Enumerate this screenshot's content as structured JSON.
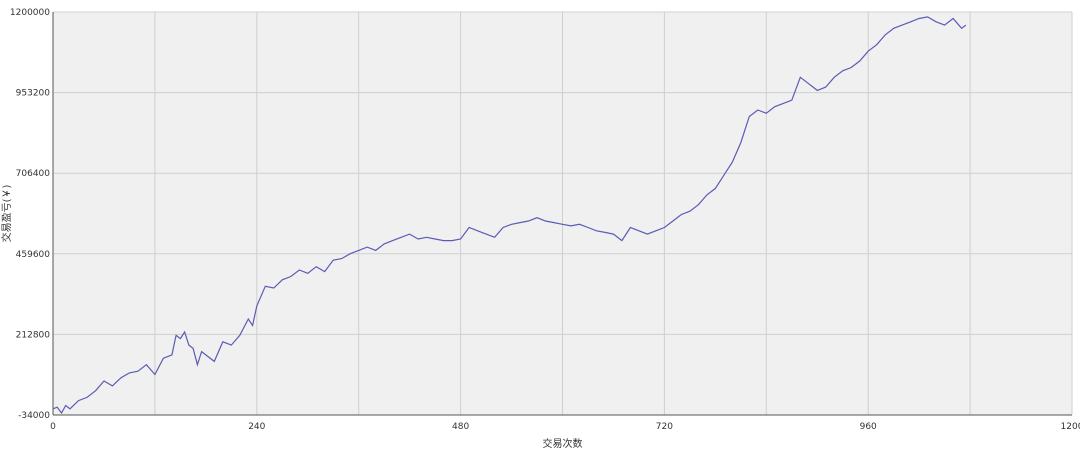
{
  "chart_data": {
    "type": "line",
    "title": "",
    "xlabel": "交易次数",
    "ylabel": "交易盈亏(￥)",
    "xlim": [
      0,
      1200
    ],
    "ylim": [
      -34000,
      1200000
    ],
    "x_ticks": [
      0,
      240,
      480,
      720,
      960,
      1200
    ],
    "y_ticks": [
      -34000,
      212800,
      459600,
      706400,
      953200,
      1200000
    ],
    "x_tick_labels": [
      "0",
      "240",
      "480",
      "720",
      "960",
      "1200"
    ],
    "y_tick_labels": [
      "-34000",
      "212800",
      "459600",
      "706400",
      "953200",
      "1200000"
    ],
    "grid": true,
    "legend": "none",
    "colors": {
      "line": "#5b5bb5",
      "plot_bg": "#f0f0f0",
      "grid": "#cfcfcf"
    },
    "series": [
      {
        "x": [
          0,
          5,
          10,
          15,
          20,
          30,
          40,
          50,
          60,
          70,
          80,
          90,
          100,
          110,
          120,
          130,
          140,
          145,
          150,
          155,
          160,
          165,
          170,
          175,
          180,
          190,
          200,
          210,
          220,
          230,
          235,
          240,
          250,
          260,
          270,
          280,
          290,
          300,
          310,
          320,
          330,
          340,
          350,
          360,
          370,
          380,
          390,
          400,
          410,
          420,
          430,
          440,
          450,
          460,
          470,
          480,
          490,
          500,
          510,
          520,
          530,
          540,
          550,
          560,
          570,
          580,
          590,
          600,
          610,
          620,
          630,
          640,
          650,
          660,
          670,
          680,
          690,
          700,
          710,
          720,
          730,
          740,
          750,
          760,
          770,
          780,
          790,
          800,
          810,
          820,
          830,
          840,
          850,
          860,
          870,
          880,
          890,
          900,
          910,
          920,
          930,
          940,
          950,
          960,
          970,
          980,
          990,
          1000,
          1010,
          1020,
          1030,
          1040,
          1050,
          1060,
          1070,
          1075
        ],
        "y": [
          -15000,
          -10000,
          -28000,
          -5000,
          -15000,
          10000,
          20000,
          40000,
          70000,
          55000,
          80000,
          95000,
          100000,
          120000,
          90000,
          140000,
          150000,
          210000,
          200000,
          220000,
          180000,
          170000,
          120000,
          160000,
          150000,
          130000,
          190000,
          180000,
          210000,
          260000,
          240000,
          300000,
          360000,
          355000,
          380000,
          390000,
          410000,
          400000,
          420000,
          405000,
          440000,
          445000,
          460000,
          470000,
          480000,
          470000,
          490000,
          500000,
          510000,
          520000,
          505000,
          510000,
          505000,
          500000,
          500000,
          505000,
          540000,
          530000,
          520000,
          510000,
          540000,
          550000,
          555000,
          560000,
          570000,
          560000,
          555000,
          550000,
          545000,
          550000,
          540000,
          530000,
          525000,
          520000,
          500000,
          540000,
          530000,
          520000,
          530000,
          540000,
          560000,
          580000,
          590000,
          610000,
          640000,
          660000,
          700000,
          740000,
          800000,
          880000,
          900000,
          890000,
          910000,
          920000,
          930000,
          1000000,
          980000,
          960000,
          970000,
          1000000,
          1020000,
          1030000,
          1050000,
          1080000,
          1100000,
          1130000,
          1150000,
          1160000,
          1170000,
          1180000,
          1185000,
          1170000,
          1160000,
          1180000,
          1150000,
          1160000
        ]
      }
    ]
  }
}
